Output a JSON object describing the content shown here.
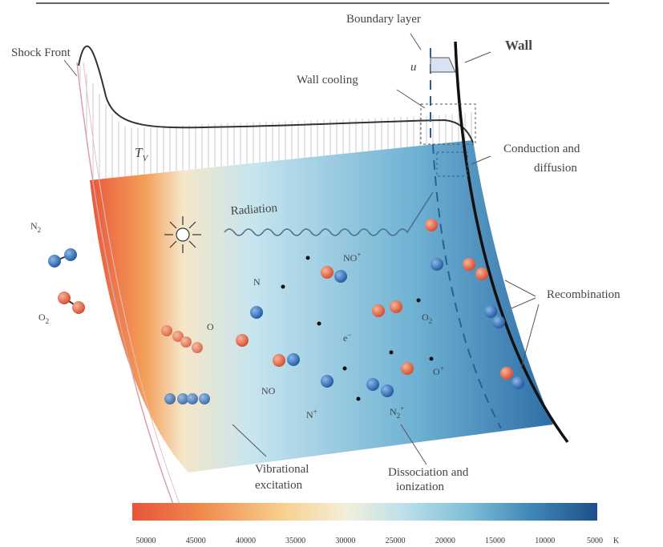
{
  "labels": {
    "shock_front": "Shock Front",
    "boundary_layer": "Boundary layer",
    "wall": "Wall",
    "u": "u",
    "wall_cooling": "Wall cooling",
    "tv": "T",
    "tv_sub": "V",
    "conduction_1": "Conduction and",
    "conduction_2": "diffusion",
    "radiation": "Radiation",
    "recombination": "Recombination",
    "vib_1": "Vibrational",
    "vib_2": "excitation",
    "diss_1": "Dissociation and",
    "diss_2": "ionization"
  },
  "species": {
    "n2_free": "N",
    "n2_free_sub": "2",
    "o2_free": "O",
    "o2_free_sub": "2",
    "no_plus": "NO",
    "no_plus_sup": "+",
    "n": "N",
    "o": "O",
    "o2": "O",
    "o2_sub": "2",
    "e_minus": "e",
    "e_minus_sup": "−",
    "no": "NO",
    "n_plus": "N",
    "n_plus_sup": "+",
    "n2_plus": "N",
    "n2_plus_sub": "2",
    "n2_plus_sup": "+",
    "o_plus": "O",
    "o_plus_sup": "+"
  },
  "colorbar": {
    "ticks": [
      "50000",
      "45000",
      "40000",
      "35000",
      "30000",
      "25000",
      "20000",
      "15000",
      "10000",
      "5000"
    ],
    "unit": "K",
    "gradient": [
      "#e8543a",
      "#f08a4e",
      "#f7cf8c",
      "#f3efdb",
      "#bfe0ea",
      "#7fbfd8",
      "#3f86b8",
      "#1d4f8a"
    ]
  },
  "colors": {
    "oxygen": "#e0603e",
    "nitrogen": "#2f6fb5"
  }
}
